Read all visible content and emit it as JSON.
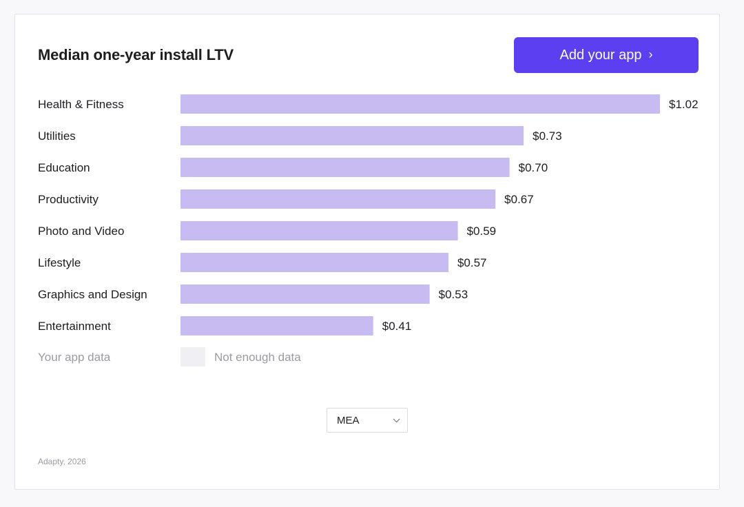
{
  "header": {
    "title": "Median one-year install LTV",
    "add_button_label": "Add your app",
    "add_button_icon": "chevron-right-icon"
  },
  "colors": {
    "bar": "#c8bbf2",
    "placeholder": "#f0f0f4",
    "accent": "#5b3ff0"
  },
  "chart_data": {
    "type": "bar",
    "orientation": "horizontal",
    "title": "Median one-year install LTV",
    "categories": [
      "Health & Fitness",
      "Utilities",
      "Education",
      "Productivity",
      "Photo and Video",
      "Lifestyle",
      "Graphics and Design",
      "Entertainment"
    ],
    "values": [
      1.02,
      0.73,
      0.7,
      0.67,
      0.59,
      0.57,
      0.53,
      0.41
    ],
    "value_labels": [
      "$1.02",
      "$0.73",
      "$0.70",
      "$0.67",
      "$0.59",
      "$0.57",
      "$0.53",
      "$0.41"
    ],
    "xlim": [
      0,
      1.02
    ],
    "xlabel": "",
    "ylabel": "",
    "grid": false,
    "user_row": {
      "label": "Your app data",
      "note": "Not enough data"
    }
  },
  "region_select": {
    "value": "MEA",
    "icon": "chevron-down-icon"
  },
  "footer": {
    "text": "Adapty, 2026"
  }
}
